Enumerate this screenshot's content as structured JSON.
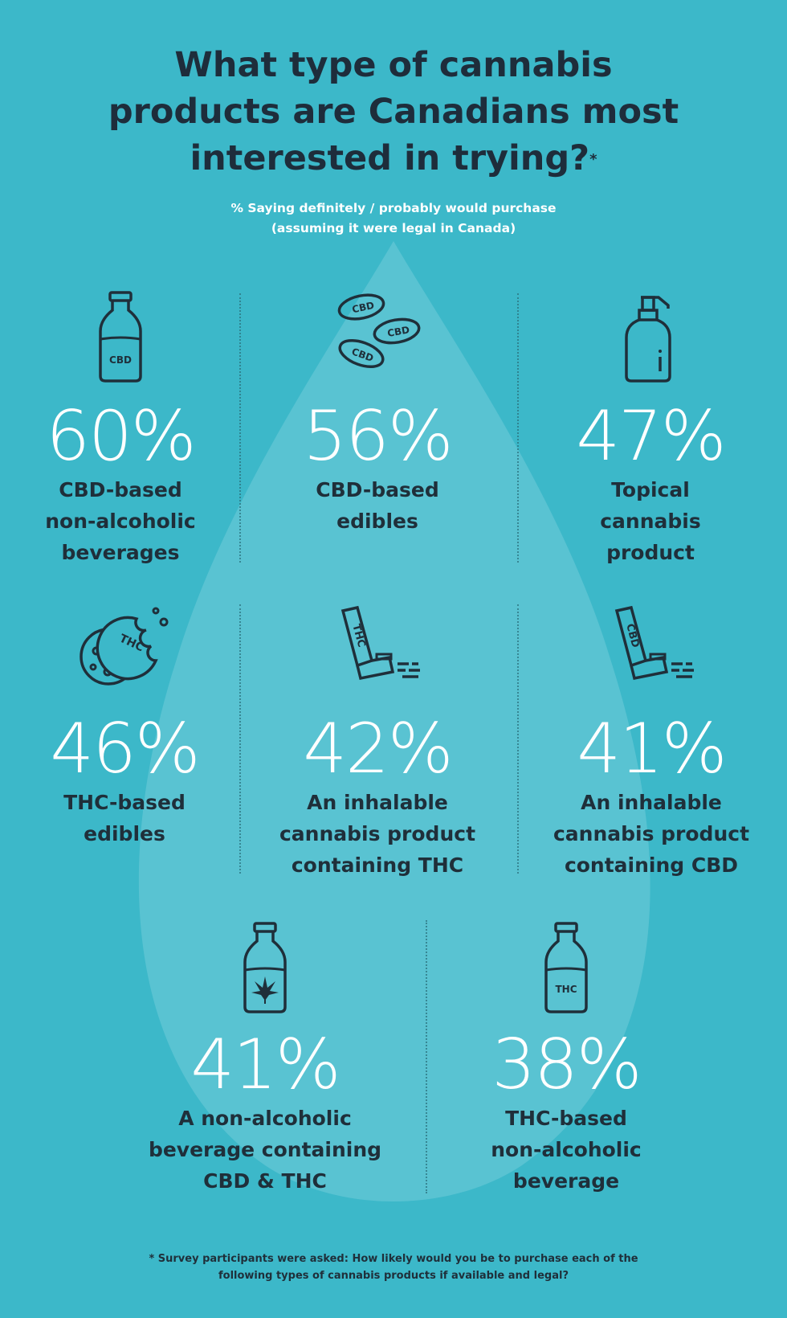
{
  "header": {
    "title_line1": "What type of cannabis",
    "title_line2": "products are Canadians most",
    "title_line3": "interested in trying?",
    "title_mark": "*",
    "subtitle_line1": "% Saying definitely / probably would purchase",
    "subtitle_line2": "(assuming it were legal in Canada)"
  },
  "products": [
    {
      "percent": "60%",
      "label_lines": [
        "CBD-based",
        "non-alcoholic",
        "beverages"
      ],
      "icon": "cbd-bottle-icon",
      "icon_text": "CBD"
    },
    {
      "percent": "56%",
      "label_lines": [
        "CBD-based",
        "edibles"
      ],
      "icon": "cbd-beans-icon",
      "icon_text": "CBD"
    },
    {
      "percent": "47%",
      "label_lines": [
        "Topical",
        "cannabis",
        "product"
      ],
      "icon": "pump-bottle-icon"
    },
    {
      "percent": "46%",
      "label_lines": [
        "THC-based",
        "edibles"
      ],
      "icon": "thc-cookie-icon",
      "icon_text": "THC"
    },
    {
      "percent": "42%",
      "label_lines": [
        "An inhalable",
        "cannabis product",
        "containing THC"
      ],
      "icon": "thc-inhaler-icon",
      "icon_text": "THC"
    },
    {
      "percent": "41%",
      "label_lines": [
        "An inhalable",
        "cannabis product",
        "containing CBD"
      ],
      "icon": "cbd-inhaler-icon",
      "icon_text": "CBD"
    },
    {
      "percent": "41%",
      "label_lines": [
        "A non-alcoholic",
        "beverage containing",
        "CBD & THC"
      ],
      "icon": "cannabis-leaf-bottle-icon"
    },
    {
      "percent": "38%",
      "label_lines": [
        "THC-based",
        "non-alcoholic",
        "beverage"
      ],
      "icon": "thc-bottle-icon",
      "icon_text": "THC"
    }
  ],
  "footnote": {
    "line1": "* Survey participants were asked: How likely would you be to purchase each of the",
    "line2": "following types of cannabis products if available and legal?"
  },
  "colors": {
    "background": "#3cb8c9",
    "drop": "#5ec4d3",
    "heading": "#1e2d3b",
    "numbers": "#ffffff"
  }
}
